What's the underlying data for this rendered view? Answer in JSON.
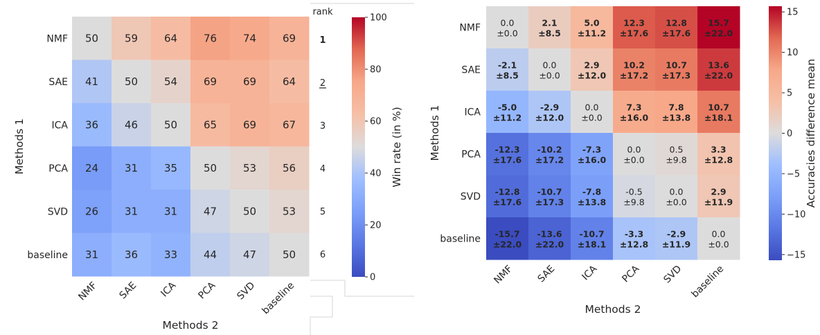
{
  "chart_data": [
    {
      "type": "heatmap",
      "title": "",
      "xlabel": "Methods 2",
      "ylabel": "Methods 1",
      "rows": [
        "NMF",
        "SAE",
        "ICA",
        "PCA",
        "SVD",
        "baseline"
      ],
      "cols": [
        "NMF",
        "SAE",
        "ICA",
        "PCA",
        "SVD",
        "baseline"
      ],
      "values": [
        [
          50,
          59,
          64,
          76,
          74,
          69
        ],
        [
          41,
          50,
          54,
          69,
          69,
          64
        ],
        [
          36,
          46,
          50,
          65,
          69,
          67
        ],
        [
          24,
          31,
          35,
          50,
          53,
          56
        ],
        [
          26,
          31,
          31,
          47,
          50,
          53
        ],
        [
          31,
          36,
          33,
          44,
          47,
          50
        ]
      ],
      "colorbar": {
        "label": "Win rate (in %)",
        "range": [
          0,
          100
        ],
        "ticks": [
          "0",
          "20",
          "40",
          "60",
          "80",
          "100"
        ],
        "colormap": "coolwarm"
      },
      "rank": {
        "header": "rank",
        "labels": [
          "1",
          "2",
          "3",
          "4",
          "5",
          "6"
        ]
      }
    },
    {
      "type": "heatmap",
      "title": "",
      "xlabel": "Methods 2",
      "ylabel": "Methods 1",
      "rows": [
        "NMF",
        "SAE",
        "ICA",
        "PCA",
        "SVD",
        "baseline"
      ],
      "cols": [
        "NMF",
        "SAE",
        "ICA",
        "PCA",
        "SVD",
        "baseline"
      ],
      "means": [
        [
          "0.0",
          "2.1",
          "5.0",
          "12.3",
          "12.8",
          "15.7"
        ],
        [
          "-2.1",
          "0.0",
          "2.9",
          "10.2",
          "10.7",
          "13.6"
        ],
        [
          "-5.0",
          "-2.9",
          "0.0",
          "7.3",
          "7.8",
          "10.7"
        ],
        [
          "-12.3",
          "-10.2",
          "-7.3",
          "0.0",
          "0.5",
          "3.3"
        ],
        [
          "-12.8",
          "-10.7",
          "-7.8",
          "-0.5",
          "0.0",
          "2.9"
        ],
        [
          "-15.7",
          "-13.6",
          "-10.7",
          "-3.3",
          "-2.9",
          "0.0"
        ]
      ],
      "stds": [
        [
          "±0.0",
          "±8.5",
          "±11.2",
          "±17.6",
          "±17.6",
          "±22.0"
        ],
        [
          "±8.5",
          "±0.0",
          "±12.0",
          "±17.2",
          "±17.3",
          "±22.0"
        ],
        [
          "±11.2",
          "±12.0",
          "±0.0",
          "±16.0",
          "±13.8",
          "±18.1"
        ],
        [
          "±17.6",
          "±17.2",
          "±16.0",
          "±0.0",
          "±9.8",
          "±12.8"
        ],
        [
          "±17.6",
          "±17.3",
          "±13.8",
          "±9.8",
          "±0.0",
          "±11.9"
        ],
        [
          "±22.0",
          "±22.0",
          "±18.1",
          "±12.8",
          "±11.9",
          "±0.0"
        ]
      ],
      "bold": [
        [
          false,
          true,
          true,
          true,
          true,
          true
        ],
        [
          true,
          false,
          true,
          true,
          true,
          true
        ],
        [
          true,
          true,
          false,
          true,
          true,
          true
        ],
        [
          true,
          true,
          true,
          false,
          false,
          true
        ],
        [
          true,
          true,
          true,
          false,
          false,
          true
        ],
        [
          true,
          true,
          true,
          true,
          true,
          false
        ]
      ],
      "colorbar": {
        "label": "Accuracies difference mean",
        "range": [
          -15.7,
          15.7
        ],
        "ticks": [
          "−15",
          "−10",
          "−5",
          "0",
          "5",
          "10",
          "15"
        ],
        "tick_values": [
          -15,
          -10,
          -5,
          0,
          5,
          10,
          15
        ],
        "colormap": "coolwarm"
      }
    }
  ]
}
